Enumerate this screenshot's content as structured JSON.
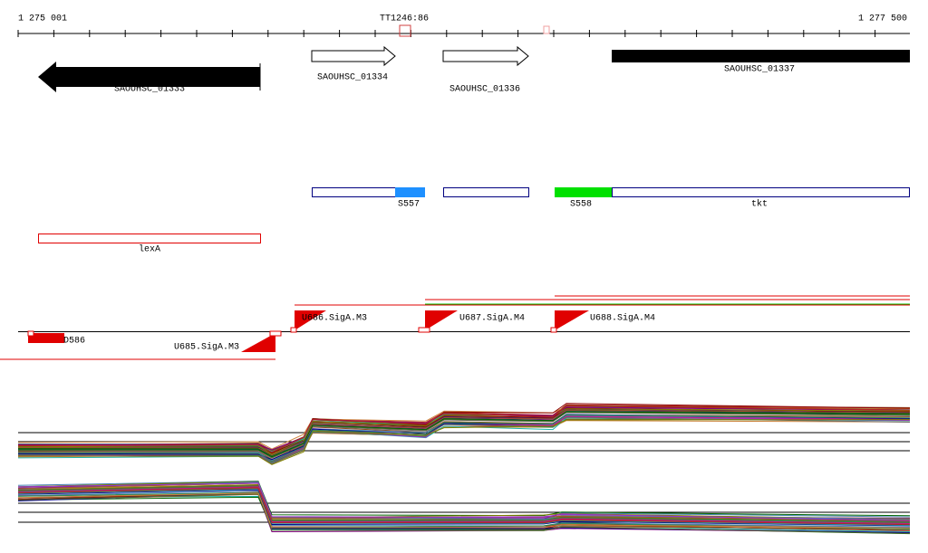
{
  "ruler": {
    "start": "1 275 001",
    "marker": "TT1246:86",
    "end": "1 277 500"
  },
  "genes": [
    {
      "label": "SAOUHSC_01333"
    },
    {
      "label": "SAOUHSC_01334"
    },
    {
      "label": "SAOUHSC_01336"
    },
    {
      "label": "SAOUHSC_01337"
    }
  ],
  "segments": [
    {
      "label": "S557"
    },
    {
      "label": "S558"
    },
    {
      "label": "tkt"
    },
    {
      "label": "lexA"
    }
  ],
  "promoters": [
    {
      "label": "D586"
    },
    {
      "label": "U685.SigA.M3"
    },
    {
      "label": "U686.SigA.M3"
    },
    {
      "label": "U687.SigA.M4"
    },
    {
      "label": "U688.SigA.M4"
    }
  ]
}
